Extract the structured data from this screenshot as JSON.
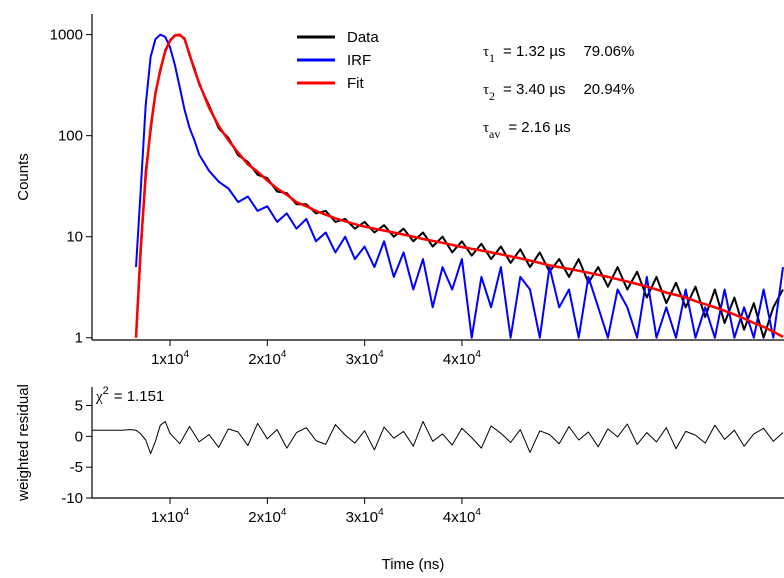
{
  "chart_data": [
    {
      "type": "line",
      "ylabel": "Counts",
      "log_y": true,
      "legend": "top-center",
      "xlim": [
        1980,
        73100
      ],
      "ylim": [
        0.95,
        1600
      ],
      "xticks": [
        {
          "value": 10000,
          "label": "1x10",
          "exponent": "4"
        },
        {
          "value": 20000,
          "label": "2x10",
          "exponent": "4"
        },
        {
          "value": 30000,
          "label": "3x10",
          "exponent": "4"
        },
        {
          "value": 40000,
          "label": "4x10",
          "exponent": "4"
        }
      ],
      "yticks": [
        1,
        10,
        100,
        1000
      ],
      "annotations": [
        {
          "symbol": "τ",
          "sub": "1",
          "text": "= 1.32 µs",
          "percent": "79.06%"
        },
        {
          "symbol": "τ",
          "sub": "2",
          "text": "= 3.40 µs",
          "percent": "20.94%"
        },
        {
          "symbol": "τ",
          "sub": "av",
          "text": "= 2.16 µs"
        }
      ],
      "x": [
        6500,
        7000,
        7500,
        8000,
        8500,
        9000,
        9500,
        10000,
        10500,
        11000,
        11500,
        12000,
        12500,
        13000,
        14000,
        15000,
        16000,
        17000,
        18000,
        19000,
        20000,
        21000,
        22000,
        23000,
        24000,
        25000,
        26000,
        27000,
        28000,
        29000,
        30000,
        31000,
        32000,
        33000,
        34000,
        35000,
        36000,
        37000,
        38000,
        39000,
        40000,
        41000,
        42000,
        43000,
        44000,
        45000,
        46000,
        47000,
        48000,
        49000,
        50000,
        51000,
        52000,
        53000,
        54000,
        55000,
        56000,
        57000,
        58000,
        59000,
        60000,
        61000,
        62000,
        63000,
        64000,
        65000,
        66000,
        67000,
        68000,
        69000,
        70000,
        71000,
        72000,
        73000
      ],
      "series": [
        {
          "name": "Data",
          "color": "#000000",
          "values": [
            1,
            7,
            45,
            110,
            270,
            430,
            700,
            880,
            990,
            980,
            920,
            620,
            470,
            320,
            200,
            118,
            95,
            64,
            55,
            41,
            38,
            28,
            27,
            21,
            21,
            17,
            18,
            14,
            15,
            12,
            14,
            11,
            13,
            10,
            12,
            9,
            11,
            8,
            10,
            7,
            9,
            6.5,
            8.5,
            6,
            8,
            5.5,
            7.5,
            5,
            7,
            4.5,
            6,
            4,
            6,
            3.5,
            5,
            3.2,
            5,
            3,
            4.5,
            2.5,
            4,
            2.2,
            3.5,
            2,
            3.2,
            1.6,
            3,
            1.4,
            2.5,
            1.2,
            2.2,
            1,
            2,
            3
          ]
        },
        {
          "name": "IRF",
          "color": "#0000ff",
          "values": [
            5,
            30,
            200,
            600,
            900,
            1000,
            950,
            750,
            500,
            300,
            180,
            120,
            90,
            65,
            45,
            35,
            30,
            22,
            25,
            18,
            20,
            14,
            17,
            12,
            15,
            9,
            11,
            7,
            10,
            6,
            8,
            5,
            9,
            4,
            7,
            3,
            6,
            2,
            5,
            3,
            6,
            1,
            4,
            2,
            5,
            1,
            4,
            3,
            1,
            5,
            2,
            3,
            1,
            4,
            2,
            1,
            3,
            2,
            1,
            4,
            1,
            2,
            1,
            3,
            1,
            2,
            1,
            3,
            1,
            2,
            1,
            3,
            1,
            5
          ]
        },
        {
          "name": "Fit",
          "color": "#ff0000",
          "values": [
            1,
            8,
            40,
            120,
            260,
            450,
            680,
            870,
            980,
            1000,
            900,
            640,
            450,
            330,
            190,
            125,
            90,
            68,
            52,
            44,
            36,
            30,
            26,
            22,
            20,
            18,
            16.5,
            15.2,
            14.2,
            13.3,
            12.6,
            12,
            11.5,
            11,
            10.5,
            10,
            9.5,
            9.1,
            8.7,
            8.3,
            7.9,
            7.6,
            7.3,
            7,
            6.7,
            6.4,
            6.1,
            5.8,
            5.5,
            5.2,
            5,
            4.8,
            4.6,
            4.4,
            4.2,
            4,
            3.8,
            3.6,
            3.4,
            3.2,
            3,
            2.8,
            2.65,
            2.5,
            2.3,
            2.15,
            2,
            1.85,
            1.7,
            1.55,
            1.4,
            1.28,
            1.15,
            1.02
          ]
        }
      ]
    },
    {
      "type": "line",
      "ylabel": "weighted residual",
      "xlabel": "Time (ns)",
      "color": "#000000",
      "xlim": [
        1980,
        73100
      ],
      "ylim": [
        -10,
        8
      ],
      "xticks": [
        {
          "value": 10000,
          "label": "1x10",
          "exponent": "4"
        },
        {
          "value": 20000,
          "label": "2x10",
          "exponent": "4"
        },
        {
          "value": 30000,
          "label": "3x10",
          "exponent": "4"
        },
        {
          "value": 40000,
          "label": "4x10",
          "exponent": "4"
        }
      ],
      "yticks": [
        -10,
        -5,
        0,
        5
      ],
      "annotations": [
        {
          "symbol": "χ",
          "sup": "2",
          "text": "= 1.151"
        }
      ],
      "x": [
        2000,
        3000,
        4000,
        5000,
        6000,
        6500,
        7000,
        7500,
        8000,
        8500,
        9000,
        9500,
        10000,
        11000,
        12000,
        13000,
        14000,
        15000,
        16000,
        17000,
        18000,
        19000,
        20000,
        21000,
        22000,
        23000,
        24000,
        25000,
        26000,
        27000,
        28000,
        29000,
        30000,
        31000,
        32000,
        33000,
        34000,
        35000,
        36000,
        37000,
        38000,
        39000,
        40000,
        41000,
        42000,
        43000,
        44000,
        45000,
        46000,
        47000,
        48000,
        49000,
        50000,
        51000,
        52000,
        53000,
        54000,
        55000,
        56000,
        57000,
        58000,
        59000,
        60000,
        61000,
        62000,
        63000,
        64000,
        65000,
        66000,
        67000,
        68000,
        69000,
        70000,
        71000,
        72000,
        73000
      ],
      "values": [
        1,
        1,
        1,
        1,
        1.1,
        1,
        0.4,
        -0.6,
        -2.8,
        -0.8,
        1.8,
        2.4,
        0.5,
        -1.2,
        1.6,
        -0.9,
        0.3,
        -1.8,
        1.2,
        0.7,
        -1.5,
        2.1,
        -0.4,
        1.1,
        -1.9,
        0.6,
        1.4,
        -0.7,
        -1.3,
        1.9,
        0.2,
        -1.1,
        0.9,
        -2.2,
        1.5,
        -0.3,
        0.8,
        -1.6,
        2.4,
        -0.8,
        0.4,
        -1.4,
        1.3,
        -0.2,
        -1.9,
        1.7,
        0.5,
        -1.0,
        1.1,
        -2.6,
        0.9,
        0.3,
        -1.2,
        1.6,
        -0.6,
        0.7,
        -1.7,
        1.2,
        -0.1,
        2.0,
        -1.3,
        0.6,
        -0.9,
        1.4,
        -2.0,
        0.8,
        0.2,
        -1.1,
        1.8,
        -0.5,
        1.0,
        -1.6,
        0.4,
        1.3,
        -0.8,
        0.6
      ]
    }
  ]
}
